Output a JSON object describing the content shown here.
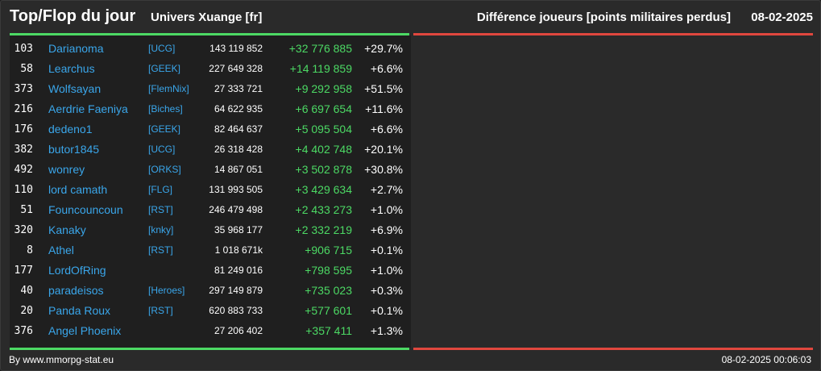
{
  "header": {
    "title": "Top/Flop du jour",
    "universe": "Univers Xuange [fr]",
    "metric": "Différence joueurs [points militaires perdus]",
    "date": "08-02-2025"
  },
  "colors": {
    "positive": "#4cd964",
    "negative": "#e0473e",
    "link": "#3aa6ea"
  },
  "top": [
    {
      "rank": "103",
      "name": "Darianoma",
      "alliance": "[UCG]",
      "total": "143 119 852",
      "diff": "+32 776 885",
      "pct": "+29.7%"
    },
    {
      "rank": "58",
      "name": "Learchus",
      "alliance": "[GEEK]",
      "total": "227 649 328",
      "diff": "+14 119 859",
      "pct": "+6.6%"
    },
    {
      "rank": "373",
      "name": "Wolfsayan",
      "alliance": "[FlemNix]",
      "total": "27 333 721",
      "diff": "+9 292 958",
      "pct": "+51.5%"
    },
    {
      "rank": "216",
      "name": "Aerdrie Faeniya",
      "alliance": "[Biches]",
      "total": "64 622 935",
      "diff": "+6 697 654",
      "pct": "+11.6%"
    },
    {
      "rank": "176",
      "name": "dedeno1",
      "alliance": "[GEEK]",
      "total": "82 464 637",
      "diff": "+5 095 504",
      "pct": "+6.6%"
    },
    {
      "rank": "382",
      "name": "butor1845",
      "alliance": "[UCG]",
      "total": "26 318 428",
      "diff": "+4 402 748",
      "pct": "+20.1%"
    },
    {
      "rank": "492",
      "name": "wonrey",
      "alliance": "[ORKS]",
      "total": "14 867 051",
      "diff": "+3 502 878",
      "pct": "+30.8%"
    },
    {
      "rank": "110",
      "name": "lord camath",
      "alliance": "[FLG]",
      "total": "131 993 505",
      "diff": "+3 429 634",
      "pct": "+2.7%"
    },
    {
      "rank": "51",
      "name": "Founcouncoun",
      "alliance": "[RST]",
      "total": "246 479 498",
      "diff": "+2 433 273",
      "pct": "+1.0%"
    },
    {
      "rank": "320",
      "name": "Kanaky",
      "alliance": "[knky]",
      "total": "35 968 177",
      "diff": "+2 332 219",
      "pct": "+6.9%"
    },
    {
      "rank": "8",
      "name": "Athel",
      "alliance": "[RST]",
      "total": "1 018 671k",
      "diff": "+906 715",
      "pct": "+0.1%"
    },
    {
      "rank": "177",
      "name": "LordOfRing",
      "alliance": "",
      "total": "81 249 016",
      "diff": "+798 595",
      "pct": "+1.0%"
    },
    {
      "rank": "40",
      "name": "paradeisos",
      "alliance": "[Heroes]",
      "total": "297 149 879",
      "diff": "+735 023",
      "pct": "+0.3%"
    },
    {
      "rank": "20",
      "name": "Panda Roux",
      "alliance": "[RST]",
      "total": "620 883 733",
      "diff": "+577 601",
      "pct": "+0.1%"
    },
    {
      "rank": "376",
      "name": "Angel Phoenix",
      "alliance": "",
      "total": "27 206 402",
      "diff": "+357 411",
      "pct": "+1.3%"
    }
  ],
  "footer": {
    "credit": "By www.mmorpg-stat.eu",
    "timestamp": "08-02-2025 00:06:03"
  }
}
